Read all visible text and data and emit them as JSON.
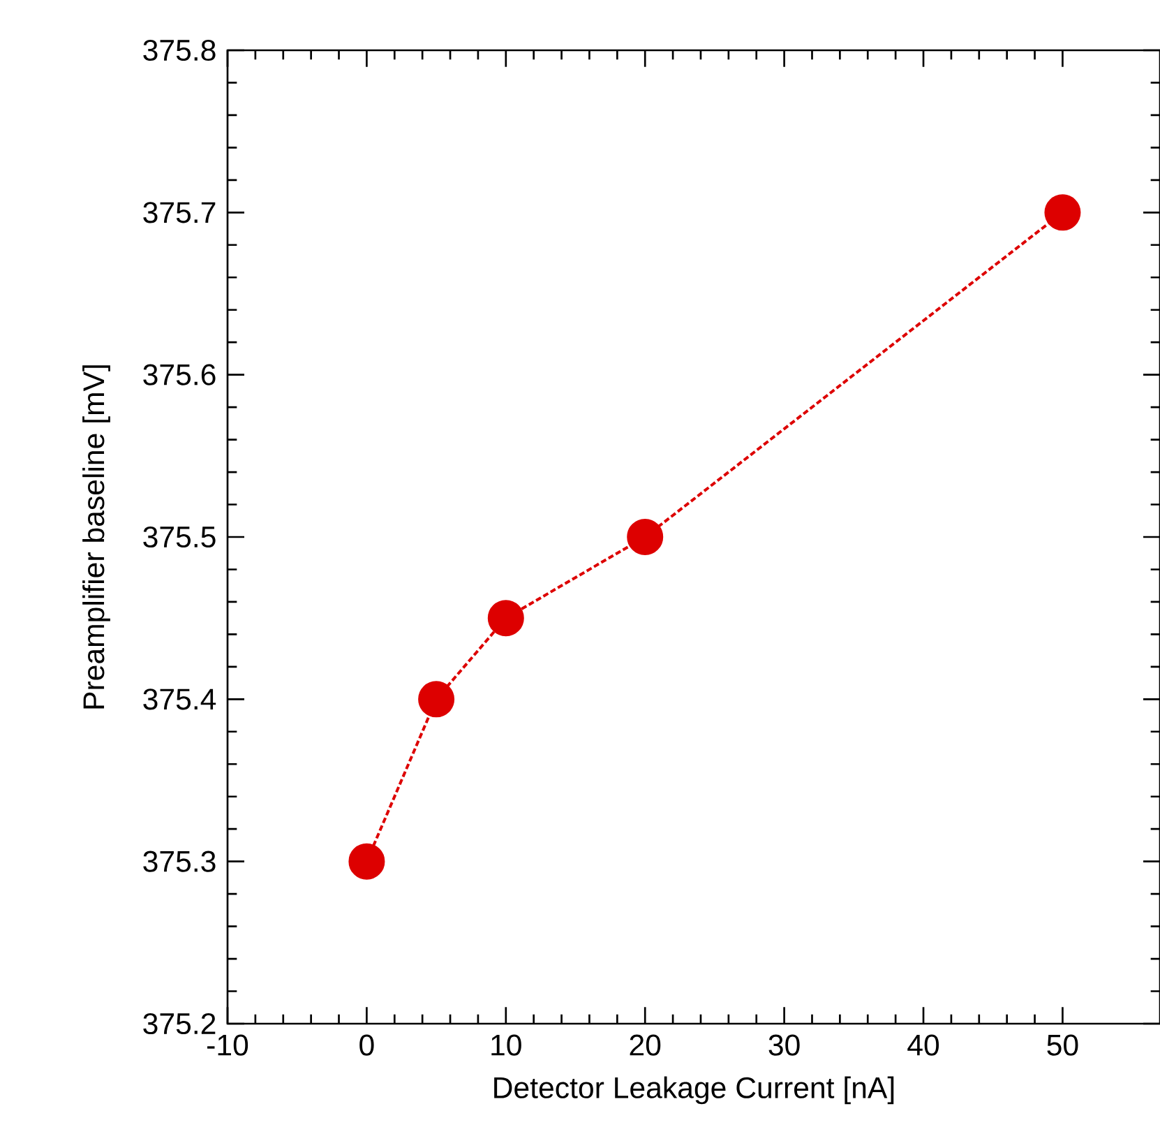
{
  "chart_data": {
    "type": "line",
    "xlabel": "Detector Leakage Current [nA]",
    "ylabel": "Preamplifier baseline [mV]",
    "x": [
      0,
      5,
      10,
      20,
      50
    ],
    "series": [
      {
        "color": "#dd0000",
        "values": [
          375.3,
          375.4,
          375.45,
          375.5,
          375.7
        ]
      }
    ],
    "xlim": [
      -10,
      57
    ],
    "xticks": [
      -10,
      0,
      10,
      20,
      30,
      40,
      50
    ],
    "ylim": [
      375.2,
      375.8
    ],
    "yticks": [
      375.2,
      375.3,
      375.4,
      375.5,
      375.6,
      375.7,
      375.8
    ],
    "marker": "circle",
    "line_style": "dashed"
  }
}
